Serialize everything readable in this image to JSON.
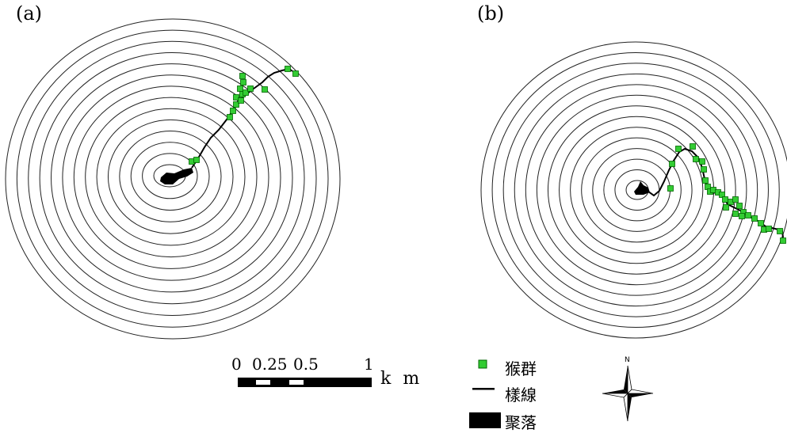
{
  "panels": {
    "a": {
      "label": "(a)"
    },
    "b": {
      "label": "(b)"
    }
  },
  "scale_bar": {
    "ticks": [
      "0",
      "0.25",
      "0.5",
      "1"
    ],
    "unit": "k m"
  },
  "legend": {
    "monkey_group": {
      "label": "猴群",
      "color": "#33cc33"
    },
    "transect": {
      "label": "樣線",
      "color": "#000000"
    },
    "village": {
      "label": "聚落",
      "color": "#000000"
    }
  },
  "north_arrow": {
    "letter": "N"
  }
}
